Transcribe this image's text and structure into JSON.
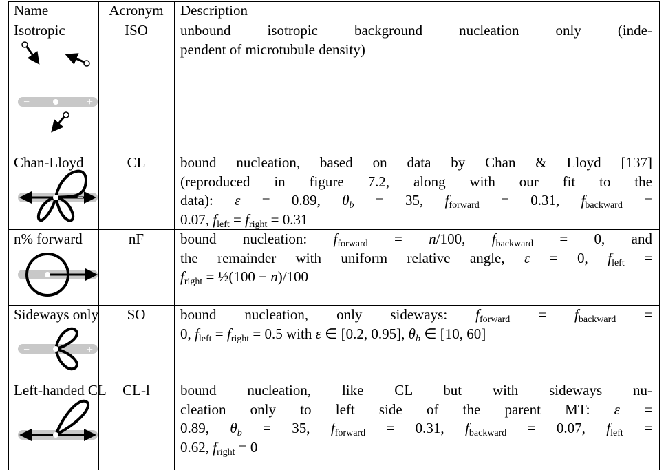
{
  "table": {
    "header": [
      "Name",
      "Acronym",
      "Description"
    ],
    "rows": [
      {
        "name": "Isotropic",
        "acronym": "ISO",
        "description": [
          [
            "unbound isotropic background nucleation only (inde-"
          ],
          [
            "pendent of microtubule density)"
          ]
        ]
      },
      {
        "name": "Chan-Lloyd",
        "acronym": "CL",
        "description": [
          [
            "bound nucleation, based on data by Chan & Lloyd [137]"
          ],
          [
            "(reproduced in figure 7.2, along with our fit to the"
          ],
          [
            "data): ",
            {
              "i": "ε"
            },
            " = 0.89, ",
            {
              "i": "θ"
            },
            {
              "sub": "b",
              "i": true
            },
            " = 35, ",
            {
              "i": "f"
            },
            {
              "sub": "forward"
            },
            " = 0.31, ",
            {
              "i": "f"
            },
            {
              "sub": "backward"
            },
            " ="
          ],
          [
            "0.07, ",
            {
              "i": "f"
            },
            {
              "sub": "left"
            },
            " = ",
            {
              "i": "f"
            },
            {
              "sub": "right"
            },
            " = 0.31"
          ]
        ]
      },
      {
        "name": "n% forward",
        "acronym": "nF",
        "description": [
          [
            "bound nucleation: ",
            {
              "i": "f"
            },
            {
              "sub": "forward"
            },
            " = ",
            {
              "i": "n"
            },
            "/100, ",
            {
              "i": "f"
            },
            {
              "sub": "backward"
            },
            " = 0, and"
          ],
          [
            "the remainder with uniform relative angle, ",
            {
              "i": "ε"
            },
            " = 0, ",
            {
              "i": "f"
            },
            {
              "sub": "left"
            },
            " ="
          ],
          [
            {
              "i": "f"
            },
            {
              "sub": "right"
            },
            " = ½(100 − ",
            {
              "i": "n"
            },
            ")/100"
          ]
        ]
      },
      {
        "name": "Sideways only",
        "acronym": "SO",
        "description": [
          [
            "bound nucleation, only sideways: ",
            {
              "i": "f"
            },
            {
              "sub": "forward"
            },
            " = ",
            {
              "i": "f"
            },
            {
              "sub": "backward"
            },
            " ="
          ],
          [
            "0, ",
            {
              "i": "f"
            },
            {
              "sub": "left"
            },
            " = ",
            {
              "i": "f"
            },
            {
              "sub": "right"
            },
            " = 0.5 with ",
            {
              "i": "ε"
            },
            " ∈ [0.2, 0.95], ",
            {
              "i": "θ"
            },
            {
              "sub": "b",
              "i": true
            },
            " ∈ [10, 60]"
          ]
        ]
      },
      {
        "name": "Left-handed CL",
        "acronym": "CL-l",
        "description": [
          [
            "bound nucleation, like CL but with sideways nu-"
          ],
          [
            "cleation only to left side of the parent MT: ",
            {
              "i": "ε"
            },
            " ="
          ],
          [
            "0.89, ",
            {
              "i": "θ"
            },
            {
              "sub": "b",
              "i": true
            },
            " = 35, ",
            {
              "i": "f"
            },
            {
              "sub": "forward"
            },
            " = 0.31, ",
            {
              "i": "f"
            },
            {
              "sub": "backward"
            },
            " = 0.07, ",
            {
              "i": "f"
            },
            {
              "sub": "left"
            },
            " ="
          ],
          [
            "0.62, ",
            {
              "i": "f"
            },
            {
              "sub": "right"
            },
            " = 0"
          ]
        ]
      }
    ]
  }
}
